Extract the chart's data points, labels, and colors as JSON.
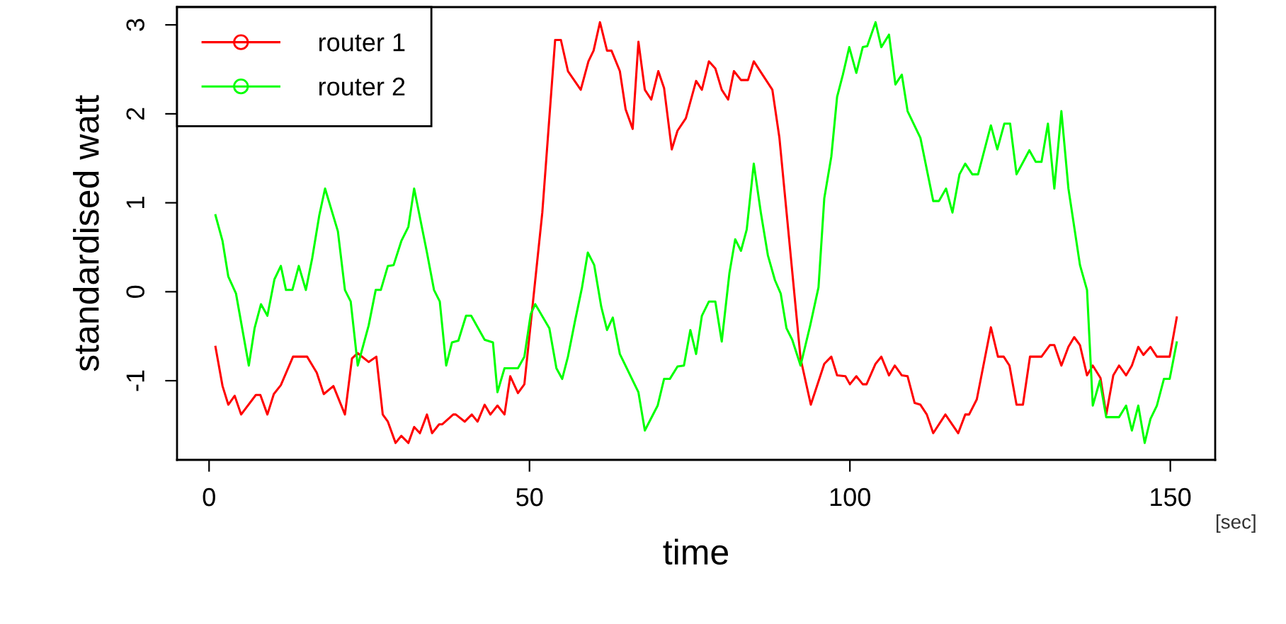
{
  "chart_data": {
    "type": "line",
    "xlabel": "time",
    "ylabel": "standardised watt",
    "annotations": [
      "[sec]"
    ],
    "xlim": [
      -5,
      157
    ],
    "ylim": [
      -1.89,
      3.2
    ],
    "xticks": [
      0,
      50,
      100,
      150
    ],
    "yticks": [
      -1,
      0,
      1,
      2,
      3
    ],
    "grid": false,
    "legend": "top left",
    "line_style": "solid",
    "series": [
      {
        "name": "router 1",
        "color": "#ff0000",
        "x": [
          1.0,
          2.1,
          3.0,
          4.0,
          5.0,
          7.3,
          8.0,
          9.1,
          10.1,
          11.2,
          13.1,
          15.3,
          16.8,
          17.9,
          19.4,
          21.2,
          22.3,
          23.2,
          24.9,
          26.1,
          27.1,
          27.9,
          29.1,
          30.0,
          31.1,
          32.0,
          32.9,
          34.0,
          34.8,
          35.9,
          36.4,
          38.1,
          38.5,
          39.9,
          41.0,
          41.9,
          43.0,
          43.9,
          45.0,
          46.1,
          47.0,
          48.2,
          49.2,
          52.0,
          54.0,
          54.9,
          56.0,
          58.0,
          59.2,
          60.0,
          61.0,
          62.1,
          62.8,
          64.1,
          65.0,
          66.1,
          67.0,
          68.0,
          69.0,
          70.1,
          71.0,
          72.2,
          73.1,
          74.4,
          76.0,
          76.9,
          78.0,
          79.0,
          80.0,
          81.0,
          81.9,
          83.0,
          84.1,
          85.0,
          87.9,
          89.0,
          92.3,
          93.9,
          96.0,
          97.1,
          98.0,
          99.3,
          100.0,
          101.0,
          102.0,
          102.6,
          104.0,
          104.9,
          106.1,
          107.0,
          108.1,
          109.0,
          110.1,
          111.0,
          112.0,
          113.0,
          114.9,
          116.9,
          118.0,
          118.6,
          119.8,
          122.0,
          123.1,
          124.0,
          124.9,
          126.0,
          127.0,
          128.1,
          129.9,
          131.2,
          131.9,
          133.0,
          134.1,
          135.0,
          135.9,
          137.0,
          137.9,
          139.1,
          140.0,
          141.1,
          142.0,
          143.1,
          144.0,
          145.0,
          145.8,
          146.9,
          147.9,
          149.9,
          151.0
        ],
        "values": [
          -0.62,
          -1.06,
          -1.27,
          -1.17,
          -1.38,
          -1.16,
          -1.16,
          -1.38,
          -1.15,
          -1.05,
          -0.73,
          -0.73,
          -0.91,
          -1.15,
          -1.06,
          -1.38,
          -0.75,
          -0.69,
          -0.79,
          -0.73,
          -1.38,
          -1.46,
          -1.7,
          -1.62,
          -1.7,
          -1.52,
          -1.59,
          -1.38,
          -1.59,
          -1.49,
          -1.49,
          -1.38,
          -1.38,
          -1.46,
          -1.38,
          -1.46,
          -1.27,
          -1.38,
          -1.28,
          -1.38,
          -0.95,
          -1.14,
          -1.04,
          0.89,
          2.83,
          2.83,
          2.48,
          2.27,
          2.59,
          2.71,
          3.03,
          2.71,
          2.71,
          2.48,
          2.05,
          1.83,
          2.81,
          2.27,
          2.16,
          2.48,
          2.29,
          1.6,
          1.81,
          1.95,
          2.37,
          2.27,
          2.59,
          2.51,
          2.27,
          2.16,
          2.48,
          2.38,
          2.38,
          2.59,
          2.27,
          1.73,
          -0.75,
          -1.27,
          -0.81,
          -0.73,
          -0.94,
          -0.95,
          -1.04,
          -0.95,
          -1.04,
          -1.04,
          -0.81,
          -0.73,
          -0.94,
          -0.83,
          -0.94,
          -0.95,
          -1.25,
          -1.27,
          -1.38,
          -1.59,
          -1.38,
          -1.59,
          -1.38,
          -1.38,
          -1.21,
          -0.4,
          -0.73,
          -0.73,
          -0.83,
          -1.27,
          -1.27,
          -0.73,
          -0.73,
          -0.6,
          -0.6,
          -0.83,
          -0.62,
          -0.51,
          -0.6,
          -0.94,
          -0.83,
          -0.97,
          -1.38,
          -0.94,
          -0.83,
          -0.94,
          -0.83,
          -0.62,
          -0.71,
          -0.62,
          -0.73,
          -0.73,
          -0.29
        ]
      },
      {
        "name": "router 2",
        "color": "#00ff00",
        "x": [
          1.0,
          2.1,
          3.0,
          4.2,
          6.2,
          7.1,
          8.1,
          9.1,
          10.2,
          11.2,
          12.0,
          13.0,
          14.0,
          15.1,
          16.1,
          17.2,
          18.1,
          20.1,
          21.2,
          22.1,
          23.2,
          24.9,
          26.0,
          26.8,
          27.9,
          28.8,
          30.0,
          31.1,
          32.0,
          34.0,
          35.1,
          36.0,
          37.0,
          37.9,
          38.9,
          40.1,
          40.9,
          43.0,
          44.3,
          45.0,
          46.1,
          48.2,
          49.2,
          50.2,
          50.9,
          53.1,
          54.2,
          55.1,
          56.0,
          57.1,
          58.2,
          59.1,
          60.1,
          61.2,
          62.1,
          63.0,
          64.1,
          67.0,
          68.0,
          70.0,
          71.0,
          71.9,
          73.1,
          74.1,
          75.1,
          76.0,
          76.9,
          78.0,
          79.0,
          80.0,
          81.2,
          82.1,
          83.0,
          83.9,
          85.0,
          86.1,
          87.2,
          88.3,
          89.2,
          90.1,
          91.0,
          92.3,
          93.8,
          95.1,
          96.0,
          97.1,
          98.0,
          98.9,
          99.9,
          101.0,
          102.0,
          102.7,
          104.0,
          104.9,
          106.1,
          107.1,
          108.1,
          109.0,
          111.0,
          113.0,
          113.9,
          115.0,
          116.0,
          117.1,
          118.0,
          119.1,
          120.0,
          122.0,
          123.0,
          124.1,
          125.0,
          126.0,
          126.9,
          128.0,
          129.0,
          129.9,
          130.9,
          131.9,
          133.0,
          134.1,
          135.9,
          137.0,
          137.9,
          139.0,
          140.0,
          142.0,
          143.1,
          144.0,
          145.0,
          146.0,
          146.9,
          147.9,
          149.0,
          149.9,
          151.0
        ],
        "values": [
          0.86,
          0.57,
          0.17,
          -0.02,
          -0.83,
          -0.41,
          -0.14,
          -0.27,
          0.14,
          0.29,
          0.02,
          0.02,
          0.29,
          0.02,
          0.38,
          0.86,
          1.16,
          0.68,
          0.02,
          -0.11,
          -0.83,
          -0.38,
          0.02,
          0.02,
          0.29,
          0.3,
          0.57,
          0.73,
          1.16,
          0.44,
          0.02,
          -0.11,
          -0.83,
          -0.57,
          -0.55,
          -0.27,
          -0.27,
          -0.54,
          -0.57,
          -1.13,
          -0.86,
          -0.86,
          -0.73,
          -0.25,
          -0.14,
          -0.41,
          -0.86,
          -0.98,
          -0.73,
          -0.33,
          0.05,
          0.44,
          0.3,
          -0.17,
          -0.43,
          -0.29,
          -0.7,
          -1.13,
          -1.56,
          -1.28,
          -0.98,
          -0.98,
          -0.84,
          -0.83,
          -0.43,
          -0.7,
          -0.27,
          -0.11,
          -0.11,
          -0.56,
          0.21,
          0.59,
          0.46,
          0.7,
          1.44,
          0.89,
          0.41,
          0.13,
          -0.02,
          -0.41,
          -0.54,
          -0.83,
          -0.38,
          0.05,
          1.05,
          1.52,
          2.19,
          2.44,
          2.75,
          2.46,
          2.75,
          2.76,
          3.03,
          2.75,
          2.89,
          2.33,
          2.44,
          2.03,
          1.73,
          1.02,
          1.02,
          1.16,
          0.89,
          1.32,
          1.44,
          1.32,
          1.32,
          1.87,
          1.6,
          1.89,
          1.89,
          1.32,
          1.44,
          1.59,
          1.46,
          1.46,
          1.89,
          1.16,
          2.03,
          1.16,
          0.3,
          0.02,
          -1.28,
          -1.0,
          -1.41,
          -1.41,
          -1.28,
          -1.56,
          -1.28,
          -1.7,
          -1.43,
          -1.28,
          -0.98,
          -0.98,
          -0.57
        ]
      }
    ]
  }
}
